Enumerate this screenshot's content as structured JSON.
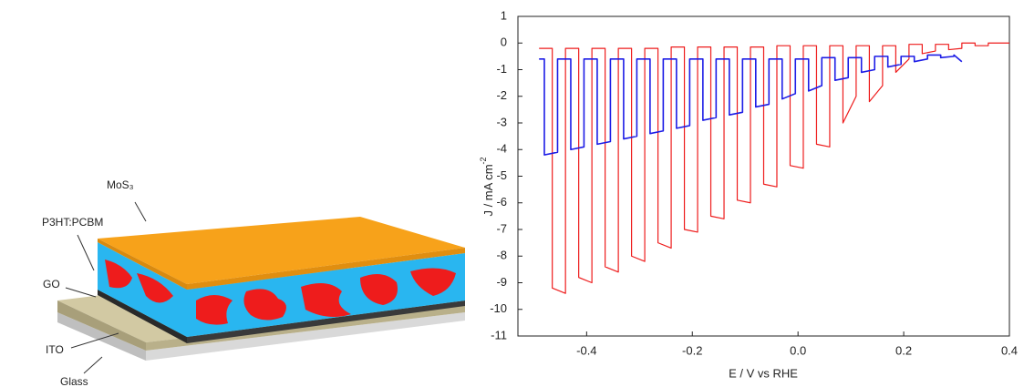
{
  "diagram": {
    "labels": [
      "MoS₃",
      "P3HT:PCBM",
      "GO",
      "ITO",
      "Glass"
    ]
  },
  "chart_data": {
    "type": "line",
    "xlabel": "E / V vs RHE",
    "ylabel": "J / mA cm",
    "ylabel_sup": "-2",
    "xlim": [
      -0.53,
      0.4
    ],
    "ylim": [
      -11,
      1
    ],
    "xticks": [
      -0.4,
      -0.2,
      {
        "value": 0,
        "label": "0.0"
      },
      0.2,
      0.4
    ],
    "yticks": [
      1,
      0,
      -1,
      -2,
      -3,
      -4,
      -5,
      -6,
      -7,
      -8,
      -9,
      -10,
      -11
    ],
    "series": [
      {
        "color": "#ee1c1c",
        "x": [
          -0.49,
          -0.465,
          -0.465,
          -0.44,
          -0.44,
          -0.415,
          -0.415,
          -0.39,
          -0.39,
          -0.365,
          -0.365,
          -0.34,
          -0.34,
          -0.315,
          -0.315,
          -0.29,
          -0.29,
          -0.265,
          -0.265,
          -0.24,
          -0.24,
          -0.215,
          -0.215,
          -0.19,
          -0.19,
          -0.165,
          -0.165,
          -0.14,
          -0.14,
          -0.115,
          -0.115,
          -0.09,
          -0.09,
          -0.065,
          -0.065,
          -0.04,
          -0.04,
          -0.015,
          -0.015,
          0.01,
          0.01,
          0.035,
          0.035,
          0.06,
          0.06,
          0.085,
          0.085,
          0.11,
          0.11,
          0.135,
          0.135,
          0.16,
          0.16,
          0.185,
          0.185,
          0.21,
          0.21,
          0.235,
          0.235,
          0.26,
          0.26,
          0.285,
          0.285,
          0.31,
          0.31,
          0.335,
          0.335,
          0.36,
          0.36,
          0.4
        ],
        "values": [
          -0.2,
          -0.2,
          -9.2,
          -9.4,
          -0.2,
          -0.2,
          -8.8,
          -9.0,
          -0.2,
          -0.2,
          -8.4,
          -8.6,
          -0.2,
          -0.2,
          -8.0,
          -8.2,
          -0.2,
          -0.2,
          -7.5,
          -7.7,
          -0.15,
          -0.15,
          -7.0,
          -7.1,
          -0.15,
          -0.15,
          -6.5,
          -6.6,
          -0.15,
          -0.15,
          -5.9,
          -6.0,
          -0.15,
          -0.15,
          -5.3,
          -5.4,
          -0.1,
          -0.1,
          -4.6,
          -4.7,
          -0.1,
          -0.1,
          -3.8,
          -3.9,
          -0.1,
          -0.1,
          -3.0,
          -2.0,
          -0.1,
          -0.1,
          -2.2,
          -1.6,
          -0.1,
          -0.1,
          -1.1,
          -0.6,
          -0.05,
          -0.05,
          -0.4,
          -0.3,
          -0.05,
          -0.05,
          -0.25,
          -0.2,
          0,
          0,
          -0.1,
          -0.1,
          0,
          0
        ]
      },
      {
        "color": "#1c1ce6",
        "x": [
          -0.49,
          -0.48,
          -0.48,
          -0.455,
          -0.455,
          -0.43,
          -0.43,
          -0.405,
          -0.405,
          -0.38,
          -0.38,
          -0.355,
          -0.355,
          -0.33,
          -0.33,
          -0.305,
          -0.305,
          -0.28,
          -0.28,
          -0.255,
          -0.255,
          -0.23,
          -0.23,
          -0.205,
          -0.205,
          -0.18,
          -0.18,
          -0.155,
          -0.155,
          -0.13,
          -0.13,
          -0.105,
          -0.105,
          -0.08,
          -0.08,
          -0.055,
          -0.055,
          -0.03,
          -0.03,
          -0.005,
          -0.005,
          0.02,
          0.02,
          0.045,
          0.045,
          0.07,
          0.07,
          0.095,
          0.095,
          0.12,
          0.12,
          0.145,
          0.145,
          0.17,
          0.17,
          0.195,
          0.195,
          0.22,
          0.22,
          0.245,
          0.245,
          0.27,
          0.27,
          0.295,
          0.295,
          0.31
        ],
        "values": [
          -0.6,
          -0.6,
          -4.2,
          -4.1,
          -0.6,
          -0.6,
          -4.0,
          -3.9,
          -0.6,
          -0.6,
          -3.8,
          -3.7,
          -0.6,
          -0.6,
          -3.6,
          -3.5,
          -0.6,
          -0.6,
          -3.4,
          -3.3,
          -0.6,
          -0.6,
          -3.2,
          -3.1,
          -0.6,
          -0.6,
          -2.9,
          -2.8,
          -0.6,
          -0.6,
          -2.7,
          -2.6,
          -0.6,
          -0.6,
          -2.4,
          -2.3,
          -0.6,
          -0.6,
          -2.1,
          -1.9,
          -0.6,
          -0.6,
          -1.8,
          -1.6,
          -0.55,
          -0.55,
          -1.4,
          -1.3,
          -0.55,
          -0.55,
          -1.1,
          -1.0,
          -0.5,
          -0.5,
          -0.9,
          -0.8,
          -0.5,
          -0.5,
          -0.7,
          -0.6,
          -0.45,
          -0.45,
          -0.55,
          -0.5,
          -0.45,
          -0.7
        ]
      }
    ]
  }
}
